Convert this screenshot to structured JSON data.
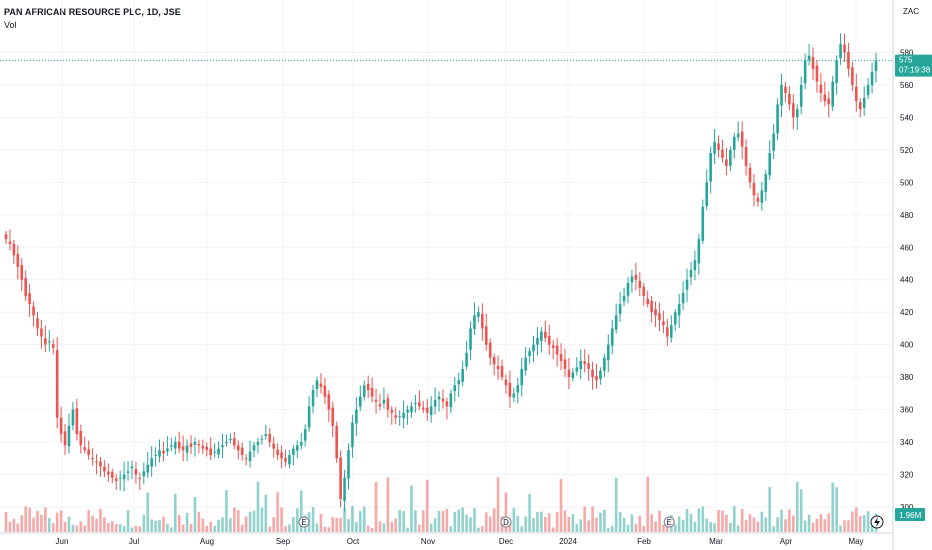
{
  "header": {
    "title": "PAN AFRICAN RESOURCE PLC, 1D, JSE",
    "vol_label": "Vol",
    "currency": "ZAC"
  },
  "price_badge": {
    "price": "575",
    "countdown": "07:19:38"
  },
  "volume_badge": {
    "value": "1.96M"
  },
  "colors": {
    "up": "#26a69a",
    "down": "#ef5350",
    "grid": "#f0f3fa",
    "axis_text": "#131722"
  },
  "markers": [
    {
      "label": "E",
      "month_index": 3.3
    },
    {
      "label": "D",
      "month_index": 6.0
    },
    {
      "label": "E",
      "month_index": 8.35
    }
  ],
  "chart_data": {
    "type": "candlestick",
    "title": "PAN AFRICAN RESOURCE PLC, 1D, JSE",
    "y_unit": "ZAC",
    "ylim": [
      292,
      600
    ],
    "y_ticks": [
      300,
      320,
      340,
      360,
      380,
      400,
      420,
      440,
      460,
      480,
      500,
      520,
      540,
      560,
      580
    ],
    "x_ticks": [
      "Jun",
      "Jul",
      "Aug",
      "Sep",
      "Oct",
      "Nov",
      "Dec",
      "2024",
      "Feb",
      "Mar",
      "Apr",
      "May"
    ],
    "last_price": 575,
    "last_volume": "1.96M",
    "grid": true,
    "series": [
      {
        "name": "price",
        "close": [
          465,
          462,
          455,
          448,
          440,
          430,
          425,
          418,
          410,
          405,
          400,
          402,
          398,
          355,
          345,
          338,
          350,
          360,
          345,
          338,
          335,
          332,
          330,
          328,
          325,
          322,
          320,
          318,
          316,
          318,
          320,
          322,
          325,
          320,
          318,
          322,
          326,
          330,
          332,
          335,
          333,
          336,
          338,
          340,
          336,
          335,
          338,
          337,
          340,
          338,
          336,
          335,
          332,
          334,
          336,
          338,
          340,
          342,
          338,
          335,
          332,
          330,
          334,
          338,
          340,
          342,
          345,
          340,
          336,
          332,
          330,
          328,
          332,
          336,
          338,
          340,
          348,
          362,
          372,
          378,
          374,
          368,
          360,
          350,
          330,
          305,
          318,
          335,
          352,
          360,
          368,
          375,
          372,
          368,
          365,
          362,
          366,
          360,
          358,
          355,
          356,
          358,
          360,
          362,
          364,
          362,
          360,
          358,
          362,
          366,
          368,
          365,
          362,
          370,
          375,
          378,
          385,
          395,
          410,
          418,
          420,
          410,
          400,
          392,
          388,
          385,
          380,
          375,
          368,
          370,
          375,
          385,
          392,
          396,
          400,
          404,
          408,
          404,
          400,
          398,
          394,
          390,
          385,
          380,
          383,
          386,
          390,
          388,
          385,
          380,
          378,
          384,
          392,
          400,
          410,
          418,
          425,
          430,
          438,
          442,
          440,
          435,
          430,
          425,
          420,
          418,
          415,
          412,
          405,
          412,
          420,
          425,
          432,
          440,
          446,
          452,
          465,
          485,
          500,
          518,
          525,
          520,
          515,
          510,
          520,
          528,
          530,
          522,
          510,
          500,
          492,
          488,
          495,
          505,
          518,
          530,
          548,
          560,
          555,
          548,
          540,
          545,
          560,
          575,
          578,
          570,
          562,
          555,
          550,
          548,
          562,
          575,
          585,
          580,
          570,
          560,
          550,
          545,
          552,
          560,
          568,
          575
        ]
      }
    ]
  }
}
